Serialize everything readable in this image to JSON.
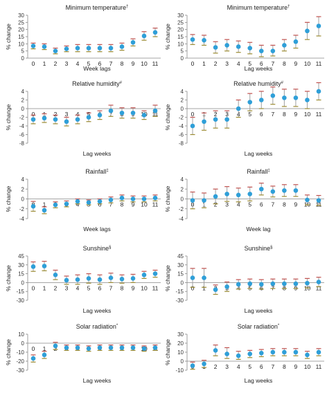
{
  "colors": {
    "point": "#2f9fd8",
    "error_cap_high": "#c0504d",
    "error_cap_low": "#9b8a2f",
    "error_line": "#a0a0a0"
  },
  "ylabel_text": "% change",
  "chart_data": [
    {
      "id": "p0",
      "type": "scatter",
      "title": "Minimum temperature",
      "title_mark": "†",
      "xlabel": "Week lags",
      "ylim": [
        0,
        30
      ],
      "yticks": [
        0,
        5,
        10,
        15,
        20,
        25,
        30
      ],
      "x": [
        0,
        1,
        2,
        3,
        4,
        5,
        6,
        7,
        8,
        9,
        10,
        11
      ],
      "y": [
        8.5,
        8.0,
        5.0,
        6.5,
        7.0,
        7.0,
        7.0,
        7.0,
        8.0,
        11.0,
        15.5,
        18.0
      ],
      "low": [
        6.5,
        6.0,
        3.0,
        4.5,
        4.5,
        4.5,
        4.5,
        4.5,
        5.5,
        8.5,
        12.5,
        15.0
      ],
      "high": [
        10.5,
        10.0,
        7.0,
        8.5,
        9.5,
        9.5,
        9.5,
        9.5,
        10.5,
        13.5,
        18.5,
        21.0
      ]
    },
    {
      "id": "p1",
      "type": "scatter",
      "title": "Minimum temperature",
      "title_mark": "†",
      "xlabel": "Lag weeks",
      "ylim": [
        0,
        30
      ],
      "yticks": [
        0,
        5,
        10,
        15,
        20,
        25,
        30
      ],
      "x": [
        0,
        1,
        2,
        3,
        4,
        5,
        6,
        7,
        8,
        9,
        10,
        11
      ],
      "y": [
        13.0,
        12.5,
        7.5,
        9.0,
        8.0,
        7.0,
        5.0,
        5.0,
        9.0,
        11.5,
        19.0,
        22.5
      ],
      "low": [
        9.5,
        9.0,
        3.5,
        5.0,
        4.0,
        3.0,
        1.0,
        1.5,
        5.0,
        7.0,
        13.0,
        15.5
      ],
      "high": [
        16.5,
        16.0,
        11.5,
        13.0,
        12.0,
        11.0,
        9.0,
        9.0,
        13.0,
        16.0,
        25.0,
        29.0
      ]
    },
    {
      "id": "p2",
      "type": "scatter",
      "title": "Relative humidity",
      "title_mark": "#",
      "xlabel": "Lag weeks",
      "ylim": [
        -8,
        4
      ],
      "yticks": [
        -8,
        -6,
        -4,
        -2,
        0,
        2,
        4
      ],
      "x": [
        0,
        1,
        2,
        3,
        4,
        5,
        6,
        7,
        8,
        9,
        10,
        11
      ],
      "y": [
        -2.5,
        -2.2,
        -2.5,
        -3.0,
        -2.5,
        -2.0,
        -1.5,
        -0.5,
        -1.0,
        -1.0,
        -1.5,
        -0.5
      ],
      "low": [
        -3.5,
        -3.2,
        -3.5,
        -4.0,
        -3.5,
        -3.0,
        -2.5,
        -1.8,
        -2.2,
        -2.2,
        -2.5,
        -1.8
      ],
      "high": [
        -1.5,
        -1.2,
        -1.5,
        -2.0,
        -1.5,
        -1.0,
        -0.5,
        0.8,
        0.2,
        0.2,
        -0.5,
        0.8
      ]
    },
    {
      "id": "p3",
      "type": "scatter",
      "title": "Relative humidity",
      "title_mark": "#",
      "xlabel": "Lag weeks",
      "ylim": [
        -8,
        4
      ],
      "yticks": [
        -8,
        -6,
        -4,
        -2,
        0,
        2,
        4
      ],
      "x": [
        0,
        1,
        2,
        3,
        4,
        5,
        6,
        7,
        8,
        9,
        10,
        11
      ],
      "y": [
        -4.0,
        -3.0,
        -2.5,
        -2.5,
        0.0,
        1.5,
        2.0,
        3.0,
        2.5,
        2.5,
        2.0,
        4.0
      ],
      "low": [
        -6.0,
        -5.0,
        -4.5,
        -4.5,
        -2.0,
        -0.5,
        0.0,
        1.0,
        0.5,
        0.5,
        0.0,
        2.0
      ],
      "high": [
        -2.0,
        -1.0,
        -0.5,
        -0.5,
        2.0,
        3.5,
        4.0,
        5.0,
        4.5,
        4.5,
        4.0,
        6.0
      ]
    },
    {
      "id": "p4",
      "type": "scatter",
      "title": "Rainfall",
      "title_mark": "‡",
      "xlabel": "Week lags",
      "ylim": [
        -4,
        4
      ],
      "yticks": [
        -4,
        -2,
        0,
        2,
        4
      ],
      "x": [
        0,
        1,
        2,
        3,
        4,
        5,
        6,
        7,
        8,
        9,
        10,
        11
      ],
      "y": [
        -1.5,
        -2.3,
        -1.2,
        -1.0,
        -0.5,
        -0.7,
        -0.5,
        -0.2,
        0.2,
        0.0,
        0.0,
        0.2
      ],
      "low": [
        -2.5,
        -3.0,
        -1.8,
        -1.6,
        -1.0,
        -1.2,
        -1.0,
        -0.8,
        -0.4,
        -0.6,
        -0.6,
        -0.4
      ],
      "high": [
        -0.5,
        -1.6,
        -0.6,
        -0.4,
        0.0,
        -0.2,
        0.0,
        0.4,
        0.8,
        0.6,
        0.6,
        0.8
      ]
    },
    {
      "id": "p5",
      "type": "scatter",
      "title": "Rainfall",
      "title_mark": "‡",
      "xlabel": "Week lag",
      "ylim": [
        -4,
        4
      ],
      "yticks": [
        -4,
        -2,
        0,
        2,
        4
      ],
      "x": [
        0,
        1,
        2,
        3,
        4,
        5,
        6,
        7,
        8,
        9,
        10,
        11
      ],
      "y": [
        -0.3,
        -0.3,
        0.5,
        1.0,
        0.8,
        1.0,
        2.0,
        1.5,
        1.7,
        1.7,
        -0.2,
        -0.3
      ],
      "low": [
        -2.0,
        -1.8,
        -1.0,
        -0.5,
        -0.6,
        -0.4,
        0.8,
        0.4,
        0.5,
        0.5,
        -1.2,
        -1.3
      ],
      "high": [
        1.4,
        1.2,
        2.0,
        2.5,
        2.2,
        2.4,
        3.2,
        2.6,
        2.9,
        2.9,
        0.8,
        0.7
      ]
    },
    {
      "id": "p6",
      "type": "scatter",
      "title": "Sunshine",
      "title_mark": "§",
      "xlabel": "Lag weeks",
      "ylim": [
        -30,
        45
      ],
      "yticks": [
        -30,
        -15,
        0,
        15,
        30,
        45
      ],
      "x": [
        0,
        1,
        2,
        3,
        4,
        5,
        6,
        7,
        8,
        9,
        10,
        11
      ],
      "y": [
        27,
        28,
        13,
        4,
        5,
        7,
        5,
        8,
        6,
        7,
        13,
        15
      ],
      "low": [
        19,
        20,
        5,
        -3,
        -3,
        -1,
        -3,
        0,
        -1,
        0,
        7,
        9
      ],
      "high": [
        35,
        36,
        21,
        11,
        13,
        15,
        13,
        16,
        13,
        14,
        19,
        21
      ]
    },
    {
      "id": "p7",
      "type": "scatter",
      "title": "Sunshine",
      "title_mark": "§",
      "xlabel": "Lag weeks",
      "ylim": [
        -30,
        45
      ],
      "yticks": [
        -30,
        -15,
        0,
        15,
        30,
        45
      ],
      "x": [
        0,
        1,
        2,
        3,
        4,
        5,
        6,
        7,
        8,
        9,
        10,
        11
      ],
      "y": [
        8,
        8,
        -12,
        -7,
        -3,
        -2,
        -3,
        -2,
        -2,
        -2,
        -1,
        1
      ],
      "low": [
        -8,
        -8,
        -20,
        -15,
        -11,
        -10,
        -11,
        -10,
        -10,
        -10,
        -9,
        -7
      ],
      "high": [
        24,
        24,
        -4,
        1,
        5,
        6,
        5,
        6,
        6,
        6,
        7,
        9
      ]
    },
    {
      "id": "p8",
      "type": "scatter",
      "title": "Solar radiation",
      "title_mark": "*",
      "xlabel": "Lag weeks",
      "ylim": [
        -30,
        10
      ],
      "yticks": [
        -30,
        -20,
        -10,
        0,
        10
      ],
      "x": [
        0,
        1,
        2,
        3,
        4,
        5,
        6,
        7,
        8,
        9,
        10,
        11
      ],
      "y": [
        -17,
        -13,
        -3,
        -5,
        -5,
        -6,
        -5,
        -5,
        -5,
        -5,
        -6,
        -5
      ],
      "low": [
        -21,
        -17,
        -7,
        -8,
        -8,
        -9,
        -8,
        -8,
        -8,
        -8,
        -9,
        -8
      ],
      "high": [
        -13,
        -9,
        1,
        -2,
        -2,
        -3,
        -2,
        -2,
        -2,
        -2,
        -3,
        -2
      ]
    },
    {
      "id": "p9",
      "type": "scatter",
      "title": "Solar radiation",
      "title_mark": "*",
      "xlabel": "Lag weeks",
      "ylim": [
        -10,
        30
      ],
      "yticks": [
        -10,
        0,
        10,
        20,
        30
      ],
      "x": [
        0,
        1,
        2,
        3,
        4,
        5,
        6,
        7,
        8,
        9,
        10,
        11
      ],
      "y": [
        -5,
        -3,
        12,
        8,
        6,
        8,
        9,
        10,
        10,
        10,
        7,
        10
      ],
      "low": [
        -9,
        -7,
        6,
        3,
        2,
        4,
        5,
        6,
        6,
        6,
        3,
        6
      ],
      "high": [
        -1,
        1,
        18,
        15,
        11,
        12,
        13,
        14,
        14,
        14,
        11,
        14
      ]
    }
  ]
}
